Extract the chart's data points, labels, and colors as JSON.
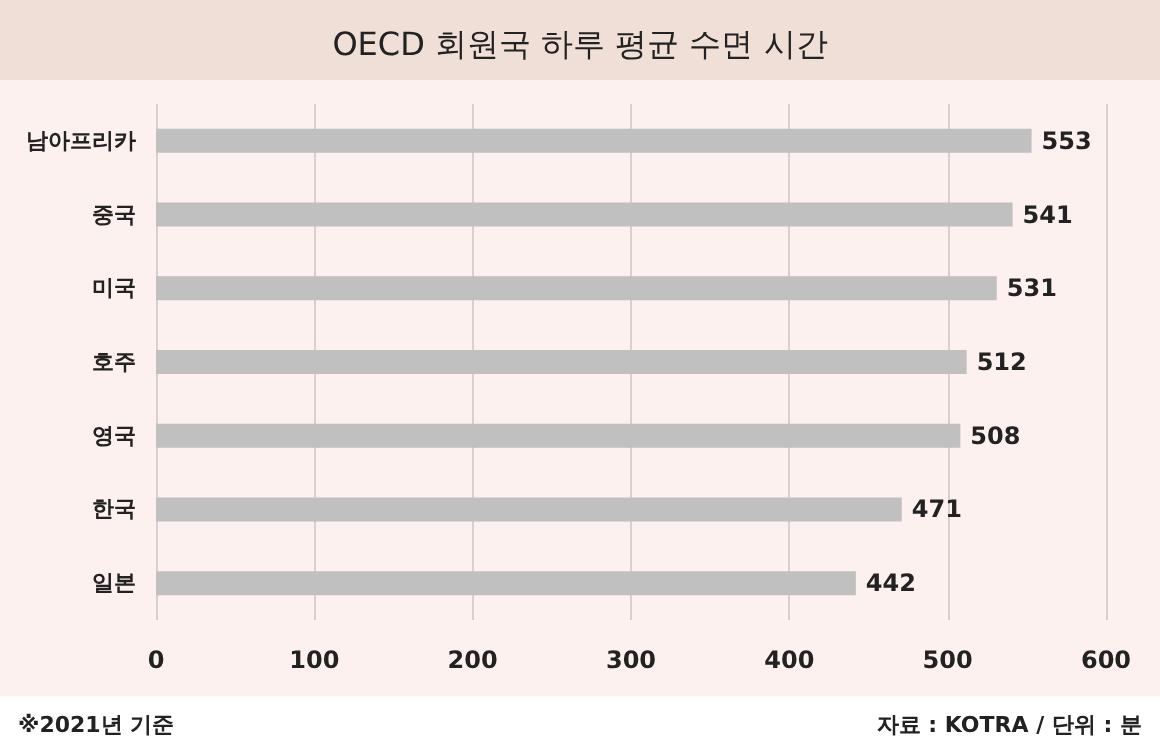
{
  "chart_data": {
    "type": "bar",
    "orientation": "horizontal",
    "title": "OECD 회원국 하루 평균 수면 시간",
    "categories": [
      "남아프리카",
      "중국",
      "미국",
      "호주",
      "영국",
      "한국",
      "일본"
    ],
    "values": [
      553,
      541,
      531,
      512,
      508,
      471,
      442
    ],
    "color": "#c0c0c0",
    "data_labels": true,
    "xlim": [
      0,
      600
    ],
    "xticks": [
      0,
      100,
      200,
      300,
      400,
      500,
      600
    ],
    "grid": "x",
    "annotations": [
      "※2021년 기준",
      "자료 : KOTRA / 단위 : 분"
    ]
  }
}
